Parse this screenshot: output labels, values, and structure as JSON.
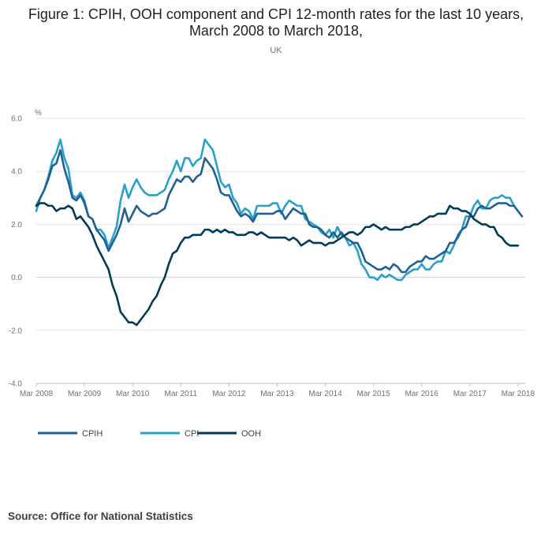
{
  "title": "Figure 1: CPIH, OOH component and CPI 12-month rates for the last 10 years, March 2008 to March 2018,",
  "subtitle": "UK",
  "source": "Source: Office for National Statistics",
  "chart_data": {
    "type": "line",
    "ylabel": "%",
    "ylim": [
      -4.0,
      6.0
    ],
    "yticks": [
      "6.0",
      "4.0",
      "2.0",
      "0.0",
      "-2.0",
      "-4.0"
    ],
    "xticks": [
      "Mar 2008",
      "Mar 2009",
      "Mar 2010",
      "Mar 2011",
      "Mar 2012",
      "Mar 2013",
      "Mar 2014",
      "Mar 2015",
      "Mar 2016",
      "Mar 2017",
      "Mar 2018"
    ],
    "x_start": "Mar 2008",
    "x_end": "Mar 2018",
    "series": [
      {
        "name": "CPIH",
        "color": "#206095",
        "values": [
          2.7,
          3.0,
          3.3,
          3.7,
          4.2,
          4.3,
          4.8,
          4.1,
          3.6,
          3.0,
          2.9,
          3.1,
          2.8,
          2.3,
          2.2,
          1.8,
          1.6,
          1.4,
          1.0,
          1.3,
          1.6,
          2.0,
          2.6,
          2.1,
          2.4,
          2.7,
          2.5,
          2.4,
          2.3,
          2.4,
          2.4,
          2.5,
          2.6,
          3.1,
          3.4,
          3.7,
          3.6,
          3.8,
          3.8,
          3.6,
          3.8,
          3.9,
          4.5,
          4.3,
          4.1,
          3.7,
          3.2,
          3.1,
          3.1,
          2.8,
          2.5,
          2.3,
          2.4,
          2.3,
          2.1,
          2.4,
          2.4,
          2.4,
          2.4,
          2.4,
          2.5,
          2.5,
          2.2,
          2.4,
          2.6,
          2.5,
          2.4,
          2.4,
          2.0,
          1.9,
          1.9,
          1.8,
          1.6,
          1.5,
          1.7,
          1.5,
          1.7,
          1.5,
          1.4,
          1.3,
          1.3,
          1.0,
          0.6,
          0.5,
          0.4,
          0.3,
          0.3,
          0.4,
          0.3,
          0.5,
          0.4,
          0.2,
          0.2,
          0.4,
          0.5,
          0.6,
          0.6,
          0.8,
          0.7,
          0.7,
          0.8,
          0.9,
          1.0,
          1.3,
          1.3,
          1.5,
          1.8,
          1.9,
          2.3,
          2.3,
          2.6,
          2.7,
          2.6,
          2.6,
          2.7,
          2.8,
          2.8,
          2.8,
          2.7,
          2.7,
          2.5,
          2.3
        ]
      },
      {
        "name": "CPI",
        "color": "#27a0cc",
        "values": [
          2.5,
          3.0,
          3.3,
          3.8,
          4.4,
          4.7,
          5.2,
          4.5,
          4.1,
          3.1,
          3.0,
          3.2,
          2.9,
          2.3,
          2.2,
          1.8,
          1.8,
          1.6,
          1.1,
          1.5,
          1.9,
          2.9,
          3.5,
          3.0,
          3.4,
          3.7,
          3.4,
          3.2,
          3.1,
          3.1,
          3.1,
          3.2,
          3.3,
          3.7,
          4.0,
          4.4,
          4.0,
          4.5,
          4.5,
          4.2,
          4.4,
          4.5,
          5.2,
          5.0,
          4.8,
          4.2,
          3.6,
          3.4,
          3.5,
          3.0,
          2.8,
          2.4,
          2.6,
          2.5,
          2.2,
          2.7,
          2.7,
          2.7,
          2.7,
          2.8,
          2.8,
          2.4,
          2.7,
          2.9,
          2.8,
          2.7,
          2.7,
          2.2,
          2.1,
          2.0,
          1.9,
          1.7,
          1.6,
          1.8,
          1.5,
          1.9,
          1.6,
          1.5,
          1.2,
          1.3,
          1.0,
          0.5,
          0.3,
          0.0,
          0.0,
          -0.1,
          0.1,
          0.0,
          0.1,
          0.0,
          -0.1,
          -0.1,
          0.1,
          0.2,
          0.3,
          0.3,
          0.5,
          0.3,
          0.3,
          0.5,
          0.6,
          0.6,
          1.0,
          0.9,
          1.2,
          1.6,
          1.8,
          2.3,
          2.3,
          2.7,
          2.9,
          2.6,
          2.6,
          2.9,
          3.0,
          3.0,
          3.1,
          3.0,
          3.0,
          2.7,
          2.5
        ]
      },
      {
        "name": "OOH",
        "color": "#003c57",
        "values": [
          2.7,
          2.8,
          2.8,
          2.7,
          2.7,
          2.5,
          2.6,
          2.6,
          2.7,
          2.6,
          2.2,
          2.3,
          2.1,
          1.9,
          1.6,
          1.2,
          0.9,
          0.6,
          0.3,
          -0.3,
          -0.7,
          -1.3,
          -1.5,
          -1.7,
          -1.7,
          -1.8,
          -1.6,
          -1.4,
          -1.2,
          -0.9,
          -0.7,
          -0.3,
          0.0,
          0.5,
          0.9,
          1.0,
          1.3,
          1.5,
          1.5,
          1.6,
          1.6,
          1.6,
          1.8,
          1.8,
          1.7,
          1.8,
          1.7,
          1.8,
          1.7,
          1.7,
          1.6,
          1.6,
          1.6,
          1.7,
          1.7,
          1.6,
          1.7,
          1.6,
          1.5,
          1.5,
          1.5,
          1.5,
          1.5,
          1.4,
          1.5,
          1.4,
          1.2,
          1.3,
          1.4,
          1.3,
          1.3,
          1.3,
          1.2,
          1.3,
          1.3,
          1.4,
          1.5,
          1.6,
          1.7,
          1.7,
          1.6,
          1.7,
          1.9,
          1.9,
          2.0,
          1.9,
          1.8,
          1.9,
          1.8,
          1.8,
          1.8,
          1.8,
          1.9,
          1.9,
          2.0,
          2.0,
          2.1,
          2.2,
          2.3,
          2.3,
          2.4,
          2.4,
          2.4,
          2.7,
          2.6,
          2.6,
          2.5,
          2.5,
          2.4,
          2.2,
          2.1,
          2.0,
          2.0,
          1.9,
          1.9,
          1.6,
          1.5,
          1.3,
          1.2,
          1.2,
          1.2
        ]
      }
    ]
  }
}
